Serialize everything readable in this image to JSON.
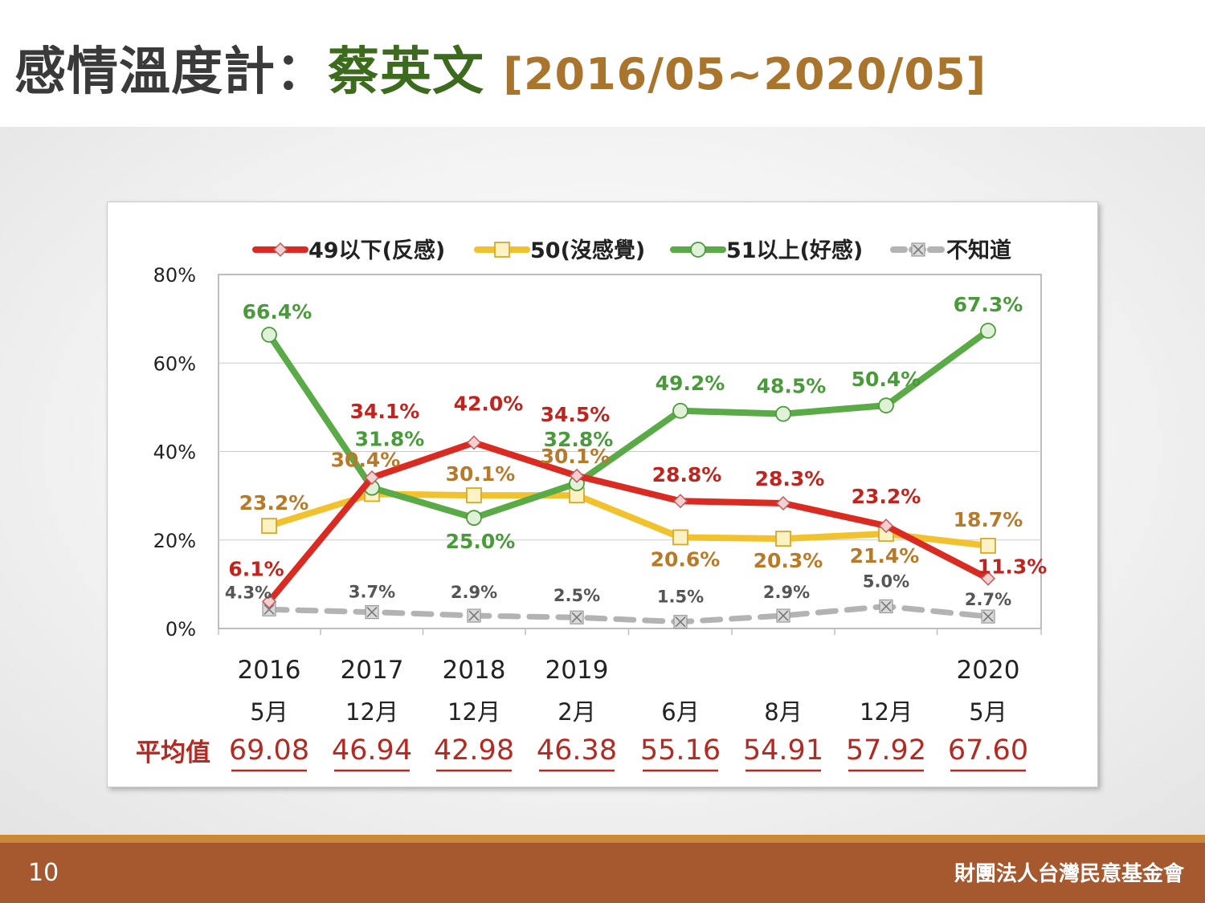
{
  "slide": {
    "title_main": "感情溫度計：",
    "title_name": "蔡英文",
    "title_range": "[2016/05~2020/05]",
    "page_number": "10",
    "org_name": "財團法人台灣民意基金會"
  },
  "chart_data": {
    "type": "line",
    "ylim": [
      0,
      80
    ],
    "yticks": [
      "0%",
      "20%",
      "40%",
      "60%",
      "80%"
    ],
    "grid": true,
    "legend_position": "top",
    "year_labels": [
      "2016",
      "2017",
      "2018",
      "2019",
      "",
      "",
      "",
      "2020"
    ],
    "month_labels": [
      "5月",
      "12月",
      "12月",
      "2月",
      "6月",
      "8月",
      "12月",
      "5月"
    ],
    "average_label": "平均值",
    "averages": [
      "69.08",
      "46.94",
      "42.98",
      "46.38",
      "55.16",
      "54.91",
      "57.92",
      "67.60"
    ],
    "series": [
      {
        "name": "49以下(反感)",
        "color": "#d92b22",
        "label_color": "#c0241e",
        "marker": "diamond",
        "values": [
          6.1,
          34.1,
          42.0,
          34.5,
          28.8,
          28.3,
          23.2,
          11.3
        ],
        "labels": [
          "6.1%",
          "34.1%",
          "42.0%",
          "34.5%",
          "28.8%",
          "28.3%",
          "23.2%",
          "11.3%"
        ]
      },
      {
        "name": "50(沒感覺)",
        "color": "#f2c22e",
        "label_color": "#b77a2a",
        "marker": "square",
        "values": [
          23.2,
          30.4,
          30.1,
          30.1,
          20.6,
          20.3,
          21.4,
          18.7
        ],
        "labels": [
          "23.2%",
          "30.4%",
          "30.1%",
          "30.1%",
          "20.6%",
          "20.3%",
          "21.4%",
          "18.7%"
        ]
      },
      {
        "name": "51以上(好感)",
        "color": "#5aab47",
        "label_color": "#4a9a3c",
        "marker": "circle",
        "values": [
          66.4,
          31.8,
          25.0,
          32.8,
          49.2,
          48.5,
          50.4,
          67.3
        ],
        "labels": [
          "66.4%",
          "31.8%",
          "25.0%",
          "32.8%",
          "49.2%",
          "48.5%",
          "50.4%",
          "67.3%"
        ]
      },
      {
        "name": "不知道",
        "color": "#b3b3b3",
        "label_color": "#555555",
        "marker": "x",
        "dashed": true,
        "values": [
          4.3,
          3.7,
          2.9,
          2.5,
          1.5,
          2.9,
          5.0,
          2.7
        ],
        "labels": [
          "4.3%",
          "3.7%",
          "2.9%",
          "2.5%",
          "1.5%",
          "2.9%",
          "5.0%",
          "2.7%"
        ]
      }
    ],
    "colors": {
      "average": "#b22a22",
      "axis_text": "#222222",
      "grid": "#cccccc"
    }
  }
}
